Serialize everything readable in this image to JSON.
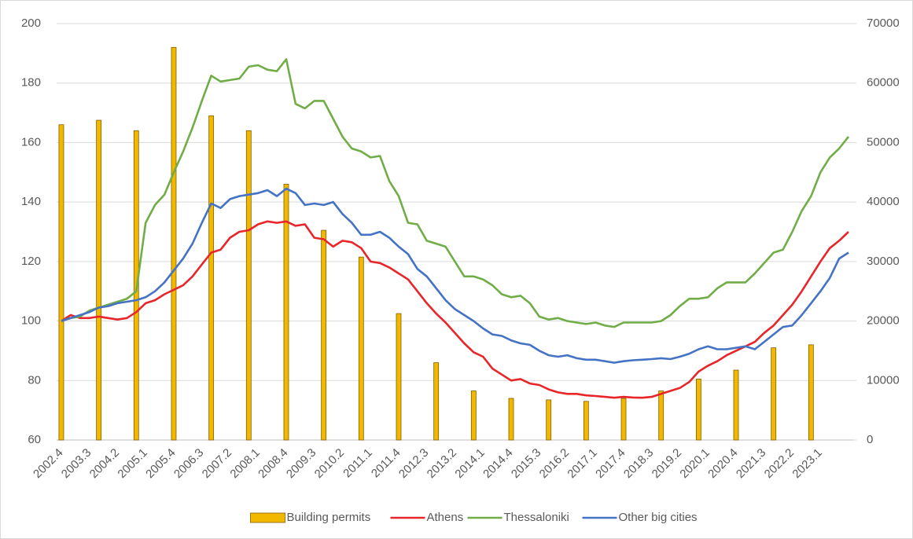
{
  "chart_data": {
    "type": "combo",
    "grid": true,
    "legend": "bottom",
    "categories": [
      "2002.4",
      null,
      null,
      "2003.3",
      null,
      null,
      "2004.2",
      null,
      null,
      "2005.1",
      null,
      null,
      "2005.4",
      null,
      null,
      "2006.3",
      null,
      null,
      "2007.2",
      null,
      null,
      "2008.1",
      null,
      null,
      "2008.4",
      null,
      null,
      "2009.3",
      null,
      null,
      "2010.2",
      null,
      null,
      "2011.1",
      null,
      null,
      "2011.4",
      null,
      null,
      "2012.3",
      null,
      null,
      "2013.2",
      null,
      null,
      "2014.1",
      null,
      null,
      "2014.4",
      null,
      null,
      "2015.3",
      null,
      null,
      "2016.2",
      null,
      null,
      "2017.1",
      null,
      null,
      "2017.4",
      null,
      null,
      "2018.3",
      null,
      null,
      "2019.2",
      null,
      null,
      "2020.1",
      null,
      null,
      "2020.4",
      null,
      null,
      "2021.3",
      null,
      null,
      "2022.2",
      null,
      null,
      "2023.1",
      null,
      null,
      null
    ],
    "ylim": [
      60,
      200
    ],
    "yticks": [
      60,
      80,
      100,
      120,
      140,
      160,
      180,
      200
    ],
    "y2lim": [
      0,
      70000
    ],
    "y2ticks": [
      0,
      10000,
      20000,
      30000,
      40000,
      50000,
      60000,
      70000
    ],
    "series": [
      {
        "name": "Building permits",
        "type": "bar",
        "axis": "y2",
        "color": "#f2b800",
        "values": [
          53000,
          null,
          null,
          null,
          53750,
          null,
          null,
          null,
          52000,
          null,
          null,
          null,
          66000,
          null,
          null,
          null,
          54500,
          null,
          null,
          null,
          52000,
          null,
          null,
          null,
          43000,
          null,
          null,
          null,
          35250,
          null,
          null,
          null,
          30750,
          null,
          null,
          null,
          21250,
          null,
          null,
          null,
          13000,
          null,
          null,
          null,
          8250,
          null,
          null,
          null,
          7000,
          null,
          null,
          null,
          6750,
          null,
          null,
          null,
          6500,
          null,
          null,
          null,
          7000,
          null,
          null,
          null,
          8250,
          null,
          null,
          null,
          10250,
          null,
          null,
          null,
          11750,
          null,
          null,
          null,
          15500,
          null,
          null,
          null,
          16000,
          null,
          null,
          null,
          null
        ]
      },
      {
        "name": "Athens",
        "type": "line",
        "color": "#e8262a",
        "values": [
          100,
          102,
          101,
          101,
          101.5,
          101,
          100.5,
          101,
          103,
          106,
          107,
          109,
          110.5,
          112,
          115,
          119,
          123,
          124,
          128,
          130,
          130.5,
          132.5,
          133.5,
          133,
          133.5,
          132,
          132.5,
          128,
          127.5,
          125,
          127,
          126.5,
          124.5,
          120,
          119.5,
          118,
          116,
          114,
          110,
          106,
          102.5,
          99.5,
          96,
          92.5,
          89.5,
          88,
          84,
          82,
          80,
          80.5,
          79,
          78.5,
          77,
          76,
          75.5,
          75.5,
          75,
          74.8,
          74.5,
          74.2,
          74.5,
          74.3,
          74.2,
          74.5,
          75.5,
          76.5,
          77.5,
          79.5,
          83,
          85,
          86.5,
          88.5,
          90,
          91.5,
          93,
          96,
          98.5,
          102,
          105.5,
          110,
          115,
          120,
          124.5,
          127,
          130
        ]
      },
      {
        "name": "Thessaloniki",
        "type": "line",
        "color": "#70ad47",
        "values": [
          100,
          101,
          101.5,
          103.5,
          104.5,
          105.5,
          106.5,
          107.5,
          110,
          133,
          139,
          142.5,
          150,
          157,
          165,
          174,
          182.5,
          180.5,
          181,
          181.5,
          185.5,
          186,
          184.5,
          184,
          188,
          173,
          171.5,
          174,
          174,
          168,
          162,
          158,
          157,
          155,
          155.5,
          147,
          142,
          133,
          132.5,
          127,
          126,
          125,
          120,
          115,
          115,
          114,
          112,
          109,
          108,
          108.5,
          106,
          101.5,
          100.5,
          101,
          100,
          99.5,
          99,
          99.5,
          98.5,
          98,
          99.5,
          99.5,
          99.5,
          99.5,
          100,
          102,
          105,
          107.5,
          107.5,
          108,
          111,
          113,
          113,
          113,
          116,
          119.5,
          123,
          124,
          130,
          137,
          142,
          150,
          155,
          158,
          162
        ]
      },
      {
        "name": "Other big cities",
        "type": "line",
        "color": "#4472c4",
        "values": [
          100,
          101,
          102,
          103,
          104.5,
          105,
          106,
          106.5,
          107,
          108,
          110,
          113,
          117,
          121,
          126,
          133,
          139.5,
          138,
          141,
          142,
          142.5,
          143,
          144,
          142,
          144.5,
          143,
          139,
          139.5,
          139,
          140,
          136,
          133,
          129,
          129,
          130,
          128,
          125,
          122.5,
          117.5,
          115,
          111,
          107,
          104,
          102,
          100,
          97.5,
          95.5,
          95,
          93.5,
          92.5,
          92,
          90,
          88.5,
          88,
          88.5,
          87.5,
          87,
          87,
          86.5,
          86,
          86.5,
          86.8,
          87,
          87.2,
          87.5,
          87.2,
          88,
          89,
          90.5,
          91.5,
          90.5,
          90.5,
          91,
          91.5,
          90.5,
          93,
          95.5,
          98,
          98.5,
          102,
          106,
          110,
          114.5,
          121,
          123
        ]
      }
    ]
  }
}
